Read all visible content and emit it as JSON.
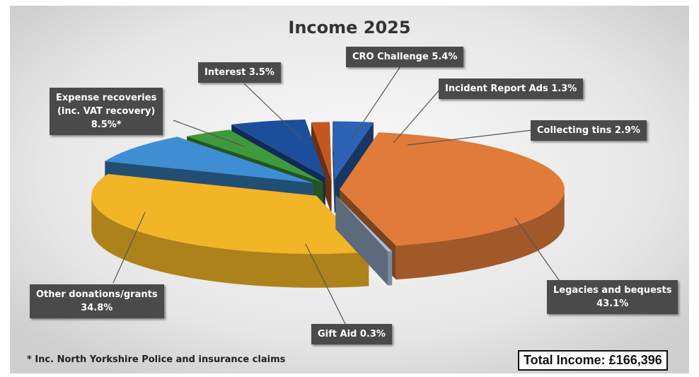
{
  "chart_data": {
    "type": "pie",
    "title": "Income 2025",
    "slices": [
      {
        "label": "Legacies and bequests",
        "value": 43.1,
        "display": "43.1%",
        "color": "#e07b39"
      },
      {
        "label": "Gift Aid",
        "value": 0.3,
        "display": "0.3%",
        "color": "#a9c1e0"
      },
      {
        "label": "Other donations/grants",
        "value": 34.8,
        "display": "34.8%",
        "color": "#f2b526"
      },
      {
        "label": "Expense recoveries (inc. VAT recovery)",
        "value": 8.5,
        "display": "8.5%*",
        "color": "#3f8ed3"
      },
      {
        "label": "Interest",
        "value": 3.5,
        "display": "3.5%",
        "color": "#3e9a3c"
      },
      {
        "label": "CRO Challenge",
        "value": 5.4,
        "display": "5.4%",
        "color": "#1d4e9c"
      },
      {
        "label": "Incident Report Ads",
        "value": 1.3,
        "display": "1.3%",
        "color": "#c2581f"
      },
      {
        "label": "Collecting tins",
        "value": 2.9,
        "display": "2.9%",
        "color": "#2d62b4"
      }
    ],
    "footnote": "* Inc. North Yorkshire Police and insurance claims",
    "total": "Total Income: £166,396"
  },
  "labels": {
    "legacies": [
      "Legacies and bequests",
      "43.1%"
    ],
    "gift_aid": "Gift Aid 0.3%",
    "other": [
      "Other donations/grants",
      "34.8%"
    ],
    "expense": [
      "Expense recoveries",
      "(inc. VAT recovery)",
      "8.5%*"
    ],
    "interest": "Interest 3.5%",
    "cro": "CRO Challenge 5.4%",
    "incident": "Incident Report Ads 1.3%",
    "tins": "Collecting tins 2.9%"
  }
}
